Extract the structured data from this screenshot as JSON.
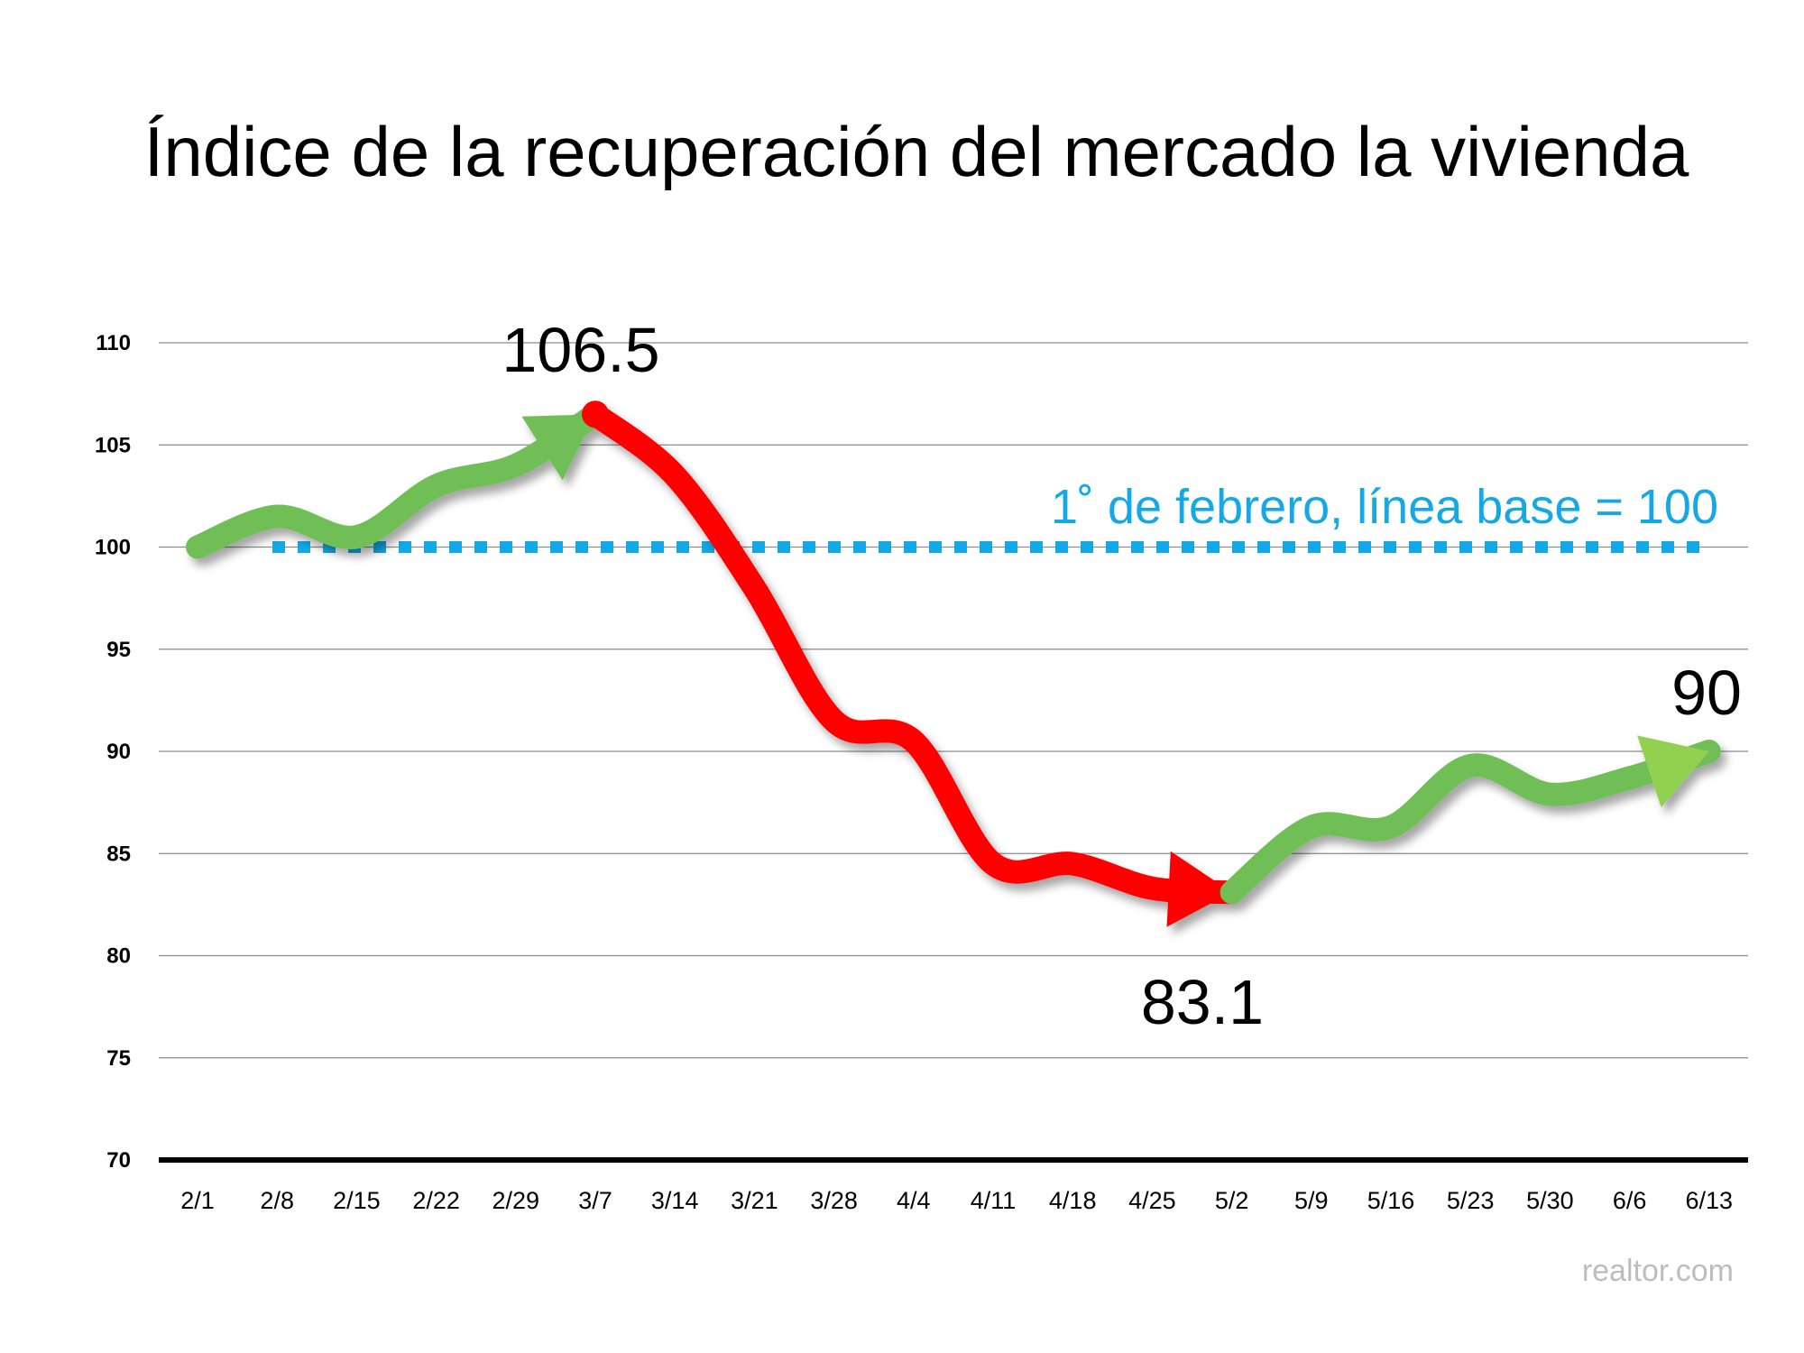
{
  "chart_data": {
    "type": "line",
    "title": "Índice de la recuperación del mercado la vivienda",
    "xlabel": "",
    "ylabel": "",
    "categories": [
      "2/1",
      "2/8",
      "2/15",
      "2/22",
      "2/29",
      "3/7",
      "3/14",
      "3/21",
      "3/28",
      "4/4",
      "4/11",
      "4/18",
      "4/25",
      "5/2",
      "5/9",
      "5/16",
      "5/23",
      "5/30",
      "6/6",
      "6/13"
    ],
    "values": [
      100,
      101.5,
      100.5,
      103,
      104,
      106.5,
      103.5,
      98,
      91.5,
      90.5,
      84.5,
      84.5,
      83.3,
      83.1,
      86.3,
      86.3,
      89.3,
      87.9,
      88.7,
      90
    ],
    "segments": [
      {
        "from": "2/1",
        "to": "3/7",
        "color": "#70bf57"
      },
      {
        "from": "3/7",
        "to": "5/2",
        "color": "#ff0000"
      },
      {
        "from": "5/2",
        "to": "6/13",
        "color": "#70bf57"
      }
    ],
    "ylim": [
      70,
      110
    ],
    "yticks": [
      70,
      75,
      80,
      85,
      90,
      95,
      100,
      105,
      110
    ],
    "grid": true,
    "baseline": {
      "value": 100,
      "label": "1˚ de febrero, línea base = 100",
      "color": "#14a8e6",
      "style": "dotted"
    },
    "annotations": [
      {
        "x": "3/7",
        "text": "106.5"
      },
      {
        "x": "5/2",
        "text": "83.1"
      },
      {
        "x": "6/13",
        "text": "90"
      }
    ]
  },
  "source": "realtor.com"
}
